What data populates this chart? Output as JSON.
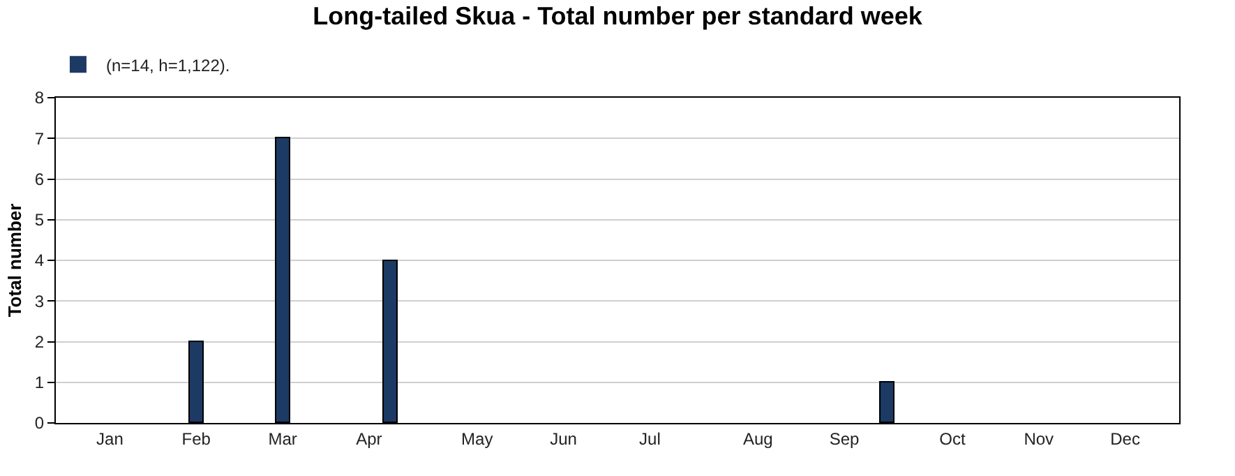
{
  "chart_data": {
    "type": "bar",
    "title": "Long-tailed Skua - Total number per standard week",
    "ylabel": "Total number",
    "categories": [
      null,
      null,
      "Jan",
      null,
      null,
      null,
      "Feb",
      null,
      null,
      null,
      "Mar",
      null,
      null,
      null,
      "Apr",
      null,
      null,
      null,
      null,
      "May",
      null,
      null,
      null,
      "Jun",
      null,
      null,
      null,
      "Jul",
      null,
      null,
      null,
      null,
      "Aug",
      null,
      null,
      null,
      "Sep",
      null,
      null,
      null,
      null,
      "Oct",
      null,
      null,
      null,
      "Nov",
      null,
      null,
      null,
      "Dec",
      null,
      null
    ],
    "series": [
      {
        "name": "(n=14, h=1,122).",
        "color": "#1c3a63",
        "values": [
          0,
          0,
          0,
          0,
          0,
          0,
          2,
          0,
          0,
          0,
          7,
          0,
          0,
          0,
          0,
          4,
          0,
          0,
          0,
          0,
          0,
          0,
          0,
          0,
          0,
          0,
          0,
          0,
          0,
          0,
          0,
          0,
          0,
          0,
          0,
          0,
          0,
          0,
          1,
          0,
          0,
          0,
          0,
          0,
          0,
          0,
          0,
          0,
          0,
          0,
          0,
          0
        ]
      }
    ],
    "ylim": [
      0,
      8
    ],
    "yticks": [
      0,
      1,
      2,
      3,
      4,
      5,
      6,
      7,
      8
    ],
    "grid": "y",
    "legend": "top left"
  }
}
